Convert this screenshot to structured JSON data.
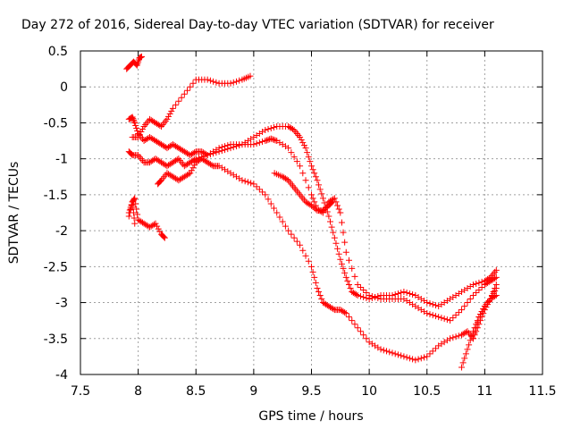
{
  "chart_data": {
    "type": "scatter",
    "title": "Day 272 of 2016, Sidereal Day-to-day VTEC variation (SDTVAR) for receiver",
    "xlabel": "GPS time / hours",
    "ylabel": "SDTVAR / TECUs",
    "xlim": [
      7.5,
      11.5
    ],
    "ylim": [
      -4,
      0.5
    ],
    "xticks": [
      "7.5",
      "8",
      "8.5",
      "9",
      "9.5",
      "10",
      "10.5",
      "11",
      "11.5"
    ],
    "yticks": [
      "0.5",
      "0",
      "-0.5",
      "-1",
      "-1.5",
      "-2",
      "-2.5",
      "-3",
      "-3.5",
      "-4"
    ],
    "grid": true,
    "marker": "+",
    "color": "#ff0000",
    "series": [
      {
        "x": [
          7.9,
          7.93,
          7.96,
          7.99,
          8.01,
          8.03
        ],
        "y": [
          0.25,
          0.3,
          0.35,
          0.3,
          0.4,
          0.42
        ]
      },
      {
        "x": [
          7.95,
          8.0,
          8.05,
          8.1,
          8.15,
          8.2,
          8.25,
          8.3,
          8.4,
          8.5,
          8.6,
          8.7,
          8.8,
          8.9,
          8.97
        ],
        "y": [
          -0.7,
          -0.7,
          -0.55,
          -0.45,
          -0.5,
          -0.55,
          -0.45,
          -0.3,
          -0.1,
          0.1,
          0.1,
          0.05,
          0.05,
          0.1,
          0.15
        ]
      },
      {
        "x": [
          7.92,
          7.95,
          7.97,
          8.0,
          8.05,
          8.1,
          8.15,
          8.2,
          8.25,
          8.3,
          8.35,
          8.4,
          8.45,
          8.5,
          8.55,
          8.6,
          8.7,
          8.8,
          8.9,
          9.0,
          9.1,
          9.2,
          9.3,
          9.35,
          9.4,
          9.45,
          9.5,
          9.55,
          9.6,
          9.65,
          9.7,
          9.75,
          9.8,
          9.85,
          9.9,
          10.0,
          10.1,
          10.2,
          10.3,
          10.4,
          10.5,
          10.6,
          10.7,
          10.8,
          10.9,
          11.0,
          11.05,
          11.1
        ],
        "y": [
          -0.45,
          -0.42,
          -0.5,
          -0.65,
          -0.75,
          -0.7,
          -0.75,
          -0.8,
          -0.85,
          -0.8,
          -0.85,
          -0.9,
          -0.95,
          -0.9,
          -0.9,
          -0.95,
          -0.85,
          -0.8,
          -0.8,
          -0.7,
          -0.6,
          -0.55,
          -0.55,
          -0.6,
          -0.7,
          -0.85,
          -1.1,
          -1.3,
          -1.55,
          -1.8,
          -2.1,
          -2.4,
          -2.65,
          -2.85,
          -2.9,
          -2.95,
          -2.9,
          -2.9,
          -2.85,
          -2.9,
          -3.0,
          -3.05,
          -2.95,
          -2.85,
          -2.75,
          -2.7,
          -2.65,
          -2.55
        ]
      },
      {
        "x": [
          7.92,
          7.95,
          8.0,
          8.05,
          8.1,
          8.15,
          8.2,
          8.25,
          8.3,
          8.35,
          8.4,
          8.45,
          8.5,
          8.6,
          8.7,
          8.8,
          8.9,
          9.0,
          9.1,
          9.15,
          9.2,
          9.3,
          9.4,
          9.5,
          9.55,
          9.6,
          9.65,
          9.7,
          9.75,
          9.8,
          9.9,
          10.0,
          10.1,
          10.2,
          10.3,
          10.4,
          10.5,
          10.6,
          10.7,
          10.8,
          10.9,
          11.0,
          11.05,
          11.1
        ],
        "y": [
          -0.9,
          -0.95,
          -0.95,
          -1.05,
          -1.05,
          -1.0,
          -1.05,
          -1.1,
          -1.05,
          -1.0,
          -1.1,
          -1.05,
          -1.0,
          -0.95,
          -0.9,
          -0.85,
          -0.8,
          -0.8,
          -0.75,
          -0.72,
          -0.75,
          -0.85,
          -1.1,
          -1.5,
          -1.7,
          -1.75,
          -1.6,
          -1.55,
          -1.75,
          -2.3,
          -2.75,
          -2.9,
          -2.95,
          -2.95,
          -2.95,
          -3.05,
          -3.15,
          -3.2,
          -3.25,
          -3.1,
          -2.9,
          -2.75,
          -2.7,
          -2.65
        ]
      },
      {
        "x": [
          8.17,
          8.2,
          8.25,
          8.3,
          8.35,
          8.4,
          8.45,
          8.5,
          8.55,
          8.6,
          8.65,
          8.7,
          8.8,
          8.9,
          9.0,
          9.1,
          9.2,
          9.3,
          9.4,
          9.5,
          9.55,
          9.6,
          9.65,
          9.7,
          9.75,
          9.8,
          9.9,
          10.0,
          10.1,
          10.2,
          10.3,
          10.4,
          10.5,
          10.6,
          10.7,
          10.8,
          10.85,
          10.9,
          10.95,
          11.0,
          11.05,
          11.1
        ],
        "y": [
          -1.35,
          -1.3,
          -1.2,
          -1.25,
          -1.3,
          -1.25,
          -1.2,
          -1.05,
          -1.0,
          -1.05,
          -1.1,
          -1.1,
          -1.2,
          -1.3,
          -1.35,
          -1.5,
          -1.75,
          -2.0,
          -2.2,
          -2.5,
          -2.8,
          -3.0,
          -3.05,
          -3.1,
          -3.1,
          -3.15,
          -3.35,
          -3.55,
          -3.65,
          -3.7,
          -3.75,
          -3.8,
          -3.75,
          -3.6,
          -3.5,
          -3.45,
          -3.4,
          -3.5,
          -3.3,
          -3.1,
          -2.95,
          -2.9
        ]
      },
      {
        "x": [
          9.18,
          9.25,
          9.3,
          9.35,
          9.4,
          9.45,
          9.5,
          9.55,
          9.6,
          9.65,
          9.68
        ],
        "y": [
          -1.2,
          -1.25,
          -1.3,
          -1.4,
          -1.5,
          -1.6,
          -1.65,
          -1.72,
          -1.72,
          -1.65,
          -1.6
        ]
      },
      {
        "x": [
          7.92,
          7.95,
          7.97,
          8.0,
          8.05,
          8.1,
          8.15,
          8.2,
          8.23
        ],
        "y": [
          -1.8,
          -1.6,
          -1.55,
          -1.85,
          -1.9,
          -1.95,
          -1.9,
          -2.05,
          -2.1
        ]
      },
      {
        "x": [
          7.92,
          7.95,
          7.97
        ],
        "y": [
          -1.75,
          -1.6,
          -1.9
        ]
      },
      {
        "x": [
          10.8,
          10.85,
          10.9,
          10.95,
          11.0,
          11.05,
          11.1
        ],
        "y": [
          -3.9,
          -3.65,
          -3.4,
          -3.2,
          -3.05,
          -2.95,
          -2.8
        ]
      },
      {
        "x": [
          10.9,
          10.95,
          11.0,
          11.05,
          11.1
        ],
        "y": [
          -3.5,
          -3.2,
          -3.05,
          -2.95,
          -2.75
        ]
      }
    ]
  }
}
